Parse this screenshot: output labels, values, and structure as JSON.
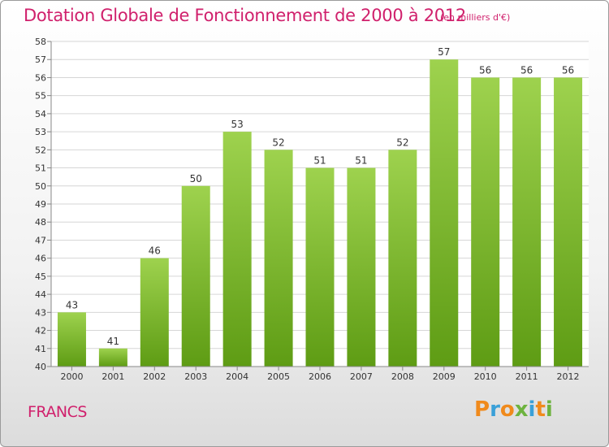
{
  "title": "Dotation Globale de Fonctionnement de 2000 à 2012",
  "unit": "(en milliers d'€)",
  "commune": "FRANCS",
  "logo": {
    "letters": [
      "P",
      "r",
      "o",
      "x",
      "i",
      "t",
      "i"
    ],
    "colors": [
      "#f08a1c",
      "#3aa0d8",
      "#f08a1c",
      "#6db33f",
      "#3aa0d8",
      "#f08a1c",
      "#6db33f"
    ]
  },
  "chart_data": {
    "type": "bar",
    "categories": [
      "2000",
      "2001",
      "2002",
      "2003",
      "2004",
      "2005",
      "2006",
      "2007",
      "2008",
      "2009",
      "2010",
      "2011",
      "2012"
    ],
    "values": [
      43,
      41,
      46,
      50,
      53,
      52,
      51,
      51,
      52,
      57,
      56,
      56,
      56
    ],
    "ylim": [
      40,
      58
    ],
    "yticks": [
      40,
      41,
      42,
      43,
      44,
      45,
      46,
      47,
      48,
      49,
      50,
      51,
      52,
      53,
      54,
      55,
      56,
      57,
      58
    ],
    "grid": true,
    "bar_color": "#7cc52a",
    "title": "Dotation Globale de Fonctionnement de 2000 à 2012",
    "xlabel": "",
    "ylabel": ""
  }
}
